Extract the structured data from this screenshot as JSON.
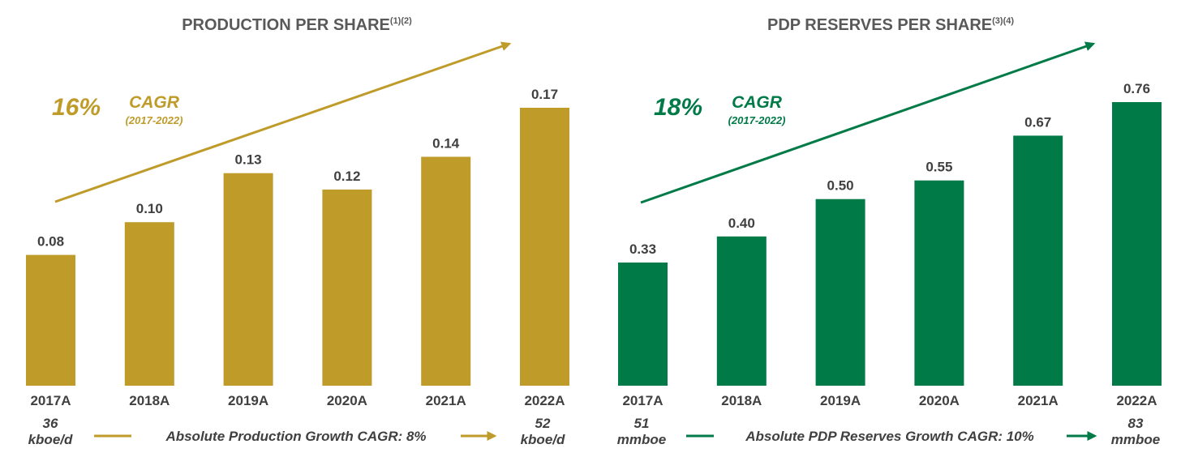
{
  "colors": {
    "gold": "#BF9B2A",
    "green": "#007A47",
    "title_text": "#595959",
    "label_text": "#404040"
  },
  "chart_data": [
    {
      "type": "bar",
      "title": "PRODUCTION PER SHARE",
      "title_footnote": "(1)(2)",
      "color": "#BF9B2A",
      "categories": [
        "2017A",
        "2018A",
        "2019A",
        "2020A",
        "2021A",
        "2022A"
      ],
      "values": [
        0.08,
        0.1,
        0.13,
        0.12,
        0.14,
        0.17
      ],
      "value_labels": [
        "0.08",
        "0.10",
        "0.13",
        "0.12",
        "0.14",
        "0.17"
      ],
      "ylim": [
        0,
        0.17
      ],
      "axes_visible": false,
      "grid": false,
      "cagr": {
        "percent": "16%",
        "label": "CAGR",
        "period": "(2017-2022)"
      },
      "footer": {
        "start_value": "36",
        "start_unit": "kboe/d",
        "growth_text": "Absolute Production Growth CAGR: 8%",
        "end_value": "52",
        "end_unit": "kboe/d"
      }
    },
    {
      "type": "bar",
      "title": "PDP RESERVES PER SHARE",
      "title_footnote": "(3)(4)",
      "color": "#007A47",
      "categories": [
        "2017A",
        "2018A",
        "2019A",
        "2020A",
        "2021A",
        "2022A"
      ],
      "values": [
        0.33,
        0.4,
        0.5,
        0.55,
        0.67,
        0.76
      ],
      "value_labels": [
        "0.33",
        "0.40",
        "0.50",
        "0.55",
        "0.67",
        "0.76"
      ],
      "ylim": [
        0,
        0.76
      ],
      "axes_visible": false,
      "grid": false,
      "cagr": {
        "percent": "18%",
        "label": "CAGR",
        "period": "(2017-2022)"
      },
      "footer": {
        "start_value": "51",
        "start_unit": "mmboe",
        "growth_text": "Absolute PDP Reserves Growth CAGR: 10%",
        "end_value": "83",
        "end_unit": "mmboe"
      }
    }
  ]
}
